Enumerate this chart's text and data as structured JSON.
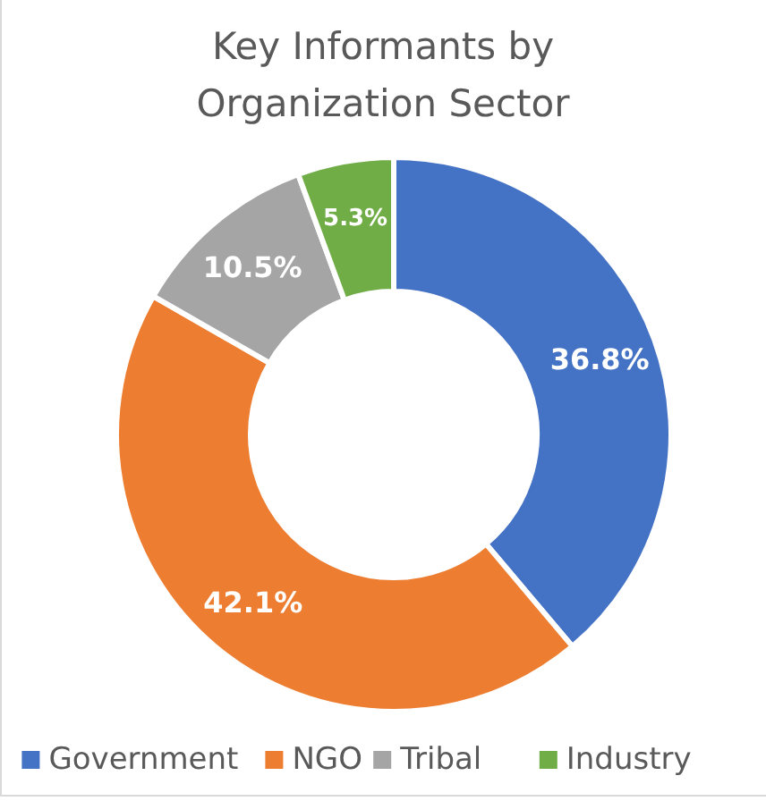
{
  "chart_data": {
    "type": "donut",
    "title": "Key Informants by Organization Sector",
    "categories": [
      "Government",
      "NGO",
      "Tribal",
      "Industry"
    ],
    "values": [
      36.8,
      42.1,
      10.5,
      5.3
    ],
    "colors": [
      "#4472c4",
      "#ed7d31",
      "#a5a5a5",
      "#70ad47"
    ],
    "value_labels": [
      "36.8%",
      "42.1%",
      "10.5%",
      "5.3%"
    ],
    "legend": "bottom"
  }
}
